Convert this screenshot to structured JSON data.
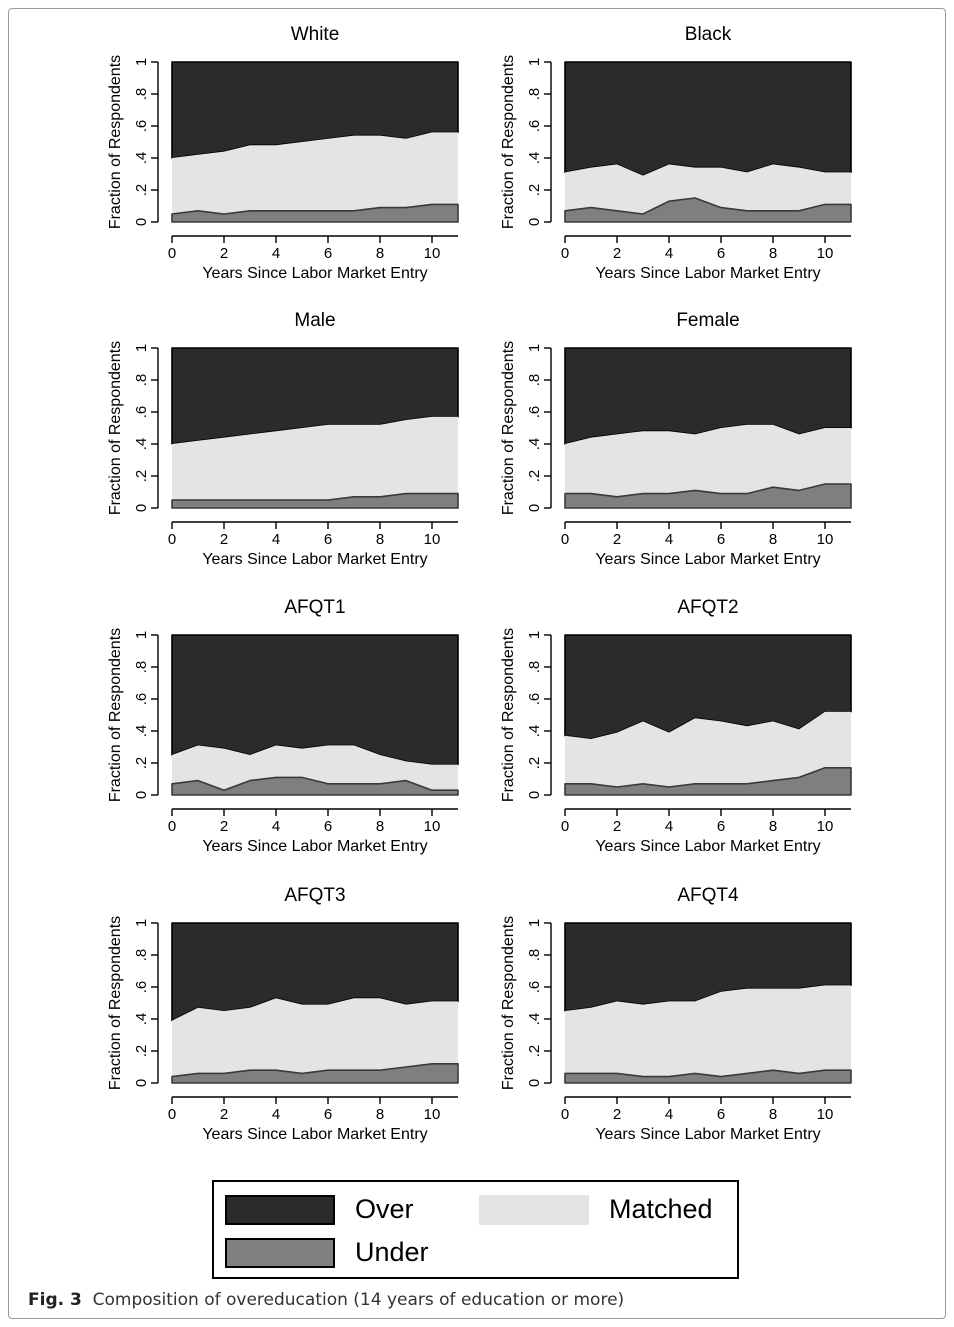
{
  "colors": {
    "over": "#2b2b2b",
    "matched": "#e4e4e4",
    "under": "#7f7f7f",
    "axis": "#000000",
    "grid": "#e9eef3"
  },
  "chart_data": [
    {
      "type": "area",
      "title": "White",
      "xlabel": "Years Since Labor Market Entry",
      "ylabel": "Fraction of Respondents",
      "xlim": [
        0,
        11
      ],
      "ylim": [
        0,
        1
      ],
      "x": [
        0,
        1,
        2,
        3,
        4,
        5,
        6,
        7,
        8,
        9,
        10,
        11
      ],
      "series": [
        {
          "name": "Under",
          "cumulative": [
            0.05,
            0.07,
            0.05,
            0.07,
            0.07,
            0.07,
            0.07,
            0.07,
            0.09,
            0.09,
            0.11,
            0.11
          ]
        },
        {
          "name": "Matched",
          "cumulative": [
            0.4,
            0.42,
            0.44,
            0.48,
            0.48,
            0.5,
            0.52,
            0.54,
            0.54,
            0.52,
            0.56,
            0.56
          ]
        },
        {
          "name": "Over",
          "cumulative": [
            1,
            1,
            1,
            1,
            1,
            1,
            1,
            1,
            1,
            1,
            1,
            1
          ]
        }
      ],
      "xticks": [
        "0",
        "2",
        "4",
        "6",
        "8",
        "10"
      ],
      "yticks": [
        "0",
        ".2",
        ".4",
        ".6",
        ".8",
        "1"
      ]
    },
    {
      "type": "area",
      "title": "Black",
      "xlabel": "Years Since Labor Market Entry",
      "ylabel": "Fraction of Respondents",
      "xlim": [
        0,
        11
      ],
      "ylim": [
        0,
        1
      ],
      "x": [
        0,
        1,
        2,
        3,
        4,
        5,
        6,
        7,
        8,
        9,
        10,
        11
      ],
      "series": [
        {
          "name": "Under",
          "cumulative": [
            0.07,
            0.09,
            0.07,
            0.05,
            0.13,
            0.15,
            0.09,
            0.07,
            0.07,
            0.07,
            0.11,
            0.11
          ]
        },
        {
          "name": "Matched",
          "cumulative": [
            0.31,
            0.34,
            0.36,
            0.29,
            0.36,
            0.34,
            0.34,
            0.31,
            0.36,
            0.34,
            0.31,
            0.31
          ]
        },
        {
          "name": "Over",
          "cumulative": [
            1,
            1,
            1,
            1,
            1,
            1,
            1,
            1,
            1,
            1,
            1,
            1
          ]
        }
      ],
      "xticks": [
        "0",
        "2",
        "4",
        "6",
        "8",
        "10"
      ],
      "yticks": [
        "0",
        ".2",
        ".4",
        ".6",
        ".8",
        "1"
      ]
    },
    {
      "type": "area",
      "title": "Male",
      "xlabel": "Years Since Labor Market Entry",
      "ylabel": "Fraction of Respondents",
      "xlim": [
        0,
        11
      ],
      "ylim": [
        0,
        1
      ],
      "x": [
        0,
        1,
        2,
        3,
        4,
        5,
        6,
        7,
        8,
        9,
        10,
        11
      ],
      "series": [
        {
          "name": "Under",
          "cumulative": [
            0.05,
            0.05,
            0.05,
            0.05,
            0.05,
            0.05,
            0.05,
            0.07,
            0.07,
            0.09,
            0.09,
            0.09
          ]
        },
        {
          "name": "Matched",
          "cumulative": [
            0.4,
            0.42,
            0.44,
            0.46,
            0.48,
            0.5,
            0.52,
            0.52,
            0.52,
            0.55,
            0.57,
            0.57
          ]
        },
        {
          "name": "Over",
          "cumulative": [
            1,
            1,
            1,
            1,
            1,
            1,
            1,
            1,
            1,
            1,
            1,
            1
          ]
        }
      ],
      "xticks": [
        "0",
        "2",
        "4",
        "6",
        "8",
        "10"
      ],
      "yticks": [
        "0",
        ".2",
        ".4",
        ".6",
        ".8",
        "1"
      ]
    },
    {
      "type": "area",
      "title": "Female",
      "xlabel": "Years Since Labor Market Entry",
      "ylabel": "Fraction of Respondents",
      "xlim": [
        0,
        11
      ],
      "ylim": [
        0,
        1
      ],
      "x": [
        0,
        1,
        2,
        3,
        4,
        5,
        6,
        7,
        8,
        9,
        10,
        11
      ],
      "series": [
        {
          "name": "Under",
          "cumulative": [
            0.09,
            0.09,
            0.07,
            0.09,
            0.09,
            0.11,
            0.09,
            0.09,
            0.13,
            0.11,
            0.15,
            0.15
          ]
        },
        {
          "name": "Matched",
          "cumulative": [
            0.4,
            0.44,
            0.46,
            0.48,
            0.48,
            0.46,
            0.5,
            0.52,
            0.52,
            0.46,
            0.5,
            0.5
          ]
        },
        {
          "name": "Over",
          "cumulative": [
            1,
            1,
            1,
            1,
            1,
            1,
            1,
            1,
            1,
            1,
            1,
            1
          ]
        }
      ],
      "xticks": [
        "0",
        "2",
        "4",
        "6",
        "8",
        "10"
      ],
      "yticks": [
        "0",
        ".2",
        ".4",
        ".6",
        ".8",
        "1"
      ]
    },
    {
      "type": "area",
      "title": "AFQT1",
      "xlabel": "Years Since Labor Market Entry",
      "ylabel": "Fraction of Respondents",
      "xlim": [
        0,
        11
      ],
      "ylim": [
        0,
        1
      ],
      "x": [
        0,
        1,
        2,
        3,
        4,
        5,
        6,
        7,
        8,
        9,
        10,
        11
      ],
      "series": [
        {
          "name": "Under",
          "cumulative": [
            0.07,
            0.09,
            0.03,
            0.09,
            0.11,
            0.11,
            0.07,
            0.07,
            0.07,
            0.09,
            0.03,
            0.03
          ]
        },
        {
          "name": "Matched",
          "cumulative": [
            0.25,
            0.31,
            0.29,
            0.25,
            0.31,
            0.29,
            0.31,
            0.31,
            0.25,
            0.21,
            0.19,
            0.19
          ]
        },
        {
          "name": "Over",
          "cumulative": [
            1,
            1,
            1,
            1,
            1,
            1,
            1,
            1,
            1,
            1,
            1,
            1
          ]
        }
      ],
      "xticks": [
        "0",
        "2",
        "4",
        "6",
        "8",
        "10"
      ],
      "yticks": [
        "0",
        ".2",
        ".4",
        ".6",
        ".8",
        "1"
      ]
    },
    {
      "type": "area",
      "title": "AFQT2",
      "xlabel": "Years Since Labor Market Entry",
      "ylabel": "Fraction of Respondents",
      "xlim": [
        0,
        11
      ],
      "ylim": [
        0,
        1
      ],
      "x": [
        0,
        1,
        2,
        3,
        4,
        5,
        6,
        7,
        8,
        9,
        10,
        11
      ],
      "series": [
        {
          "name": "Under",
          "cumulative": [
            0.07,
            0.07,
            0.05,
            0.07,
            0.05,
            0.07,
            0.07,
            0.07,
            0.09,
            0.11,
            0.17,
            0.17
          ]
        },
        {
          "name": "Matched",
          "cumulative": [
            0.37,
            0.35,
            0.39,
            0.46,
            0.39,
            0.48,
            0.46,
            0.43,
            0.46,
            0.41,
            0.52,
            0.52
          ]
        },
        {
          "name": "Over",
          "cumulative": [
            1,
            1,
            1,
            1,
            1,
            1,
            1,
            1,
            1,
            1,
            1,
            1
          ]
        }
      ],
      "xticks": [
        "0",
        "2",
        "4",
        "6",
        "8",
        "10"
      ],
      "yticks": [
        "0",
        ".2",
        ".4",
        ".6",
        ".8",
        "1"
      ]
    },
    {
      "type": "area",
      "title": "AFQT3",
      "xlabel": "Years Since Labor Market Entry",
      "ylabel": "Fraction of Respondents",
      "xlim": [
        0,
        11
      ],
      "ylim": [
        0,
        1
      ],
      "x": [
        0,
        1,
        2,
        3,
        4,
        5,
        6,
        7,
        8,
        9,
        10,
        11
      ],
      "series": [
        {
          "name": "Under",
          "cumulative": [
            0.04,
            0.06,
            0.06,
            0.08,
            0.08,
            0.06,
            0.08,
            0.08,
            0.08,
            0.1,
            0.12,
            0.12
          ]
        },
        {
          "name": "Matched",
          "cumulative": [
            0.39,
            0.47,
            0.45,
            0.47,
            0.53,
            0.49,
            0.49,
            0.53,
            0.53,
            0.49,
            0.51,
            0.51
          ]
        },
        {
          "name": "Over",
          "cumulative": [
            1,
            1,
            1,
            1,
            1,
            1,
            1,
            1,
            1,
            1,
            1,
            1
          ]
        }
      ],
      "xticks": [
        "0",
        "2",
        "4",
        "6",
        "8",
        "10"
      ],
      "yticks": [
        "0",
        ".2",
        ".4",
        ".6",
        ".8",
        "1"
      ]
    },
    {
      "type": "area",
      "title": "AFQT4",
      "xlabel": "Years Since Labor Market Entry",
      "ylabel": "Fraction of Respondents",
      "xlim": [
        0,
        11
      ],
      "ylim": [
        0,
        1
      ],
      "x": [
        0,
        1,
        2,
        3,
        4,
        5,
        6,
        7,
        8,
        9,
        10,
        11
      ],
      "series": [
        {
          "name": "Under",
          "cumulative": [
            0.06,
            0.06,
            0.06,
            0.04,
            0.04,
            0.06,
            0.04,
            0.06,
            0.08,
            0.06,
            0.08,
            0.08
          ]
        },
        {
          "name": "Matched",
          "cumulative": [
            0.45,
            0.47,
            0.51,
            0.49,
            0.51,
            0.51,
            0.57,
            0.59,
            0.59,
            0.59,
            0.61,
            0.61
          ]
        },
        {
          "name": "Over",
          "cumulative": [
            1,
            1,
            1,
            1,
            1,
            1,
            1,
            1,
            1,
            1,
            1,
            1
          ]
        }
      ],
      "xticks": [
        "0",
        "2",
        "4",
        "6",
        "8",
        "10"
      ],
      "yticks": [
        "0",
        ".2",
        ".4",
        ".6",
        ".8",
        "1"
      ]
    }
  ],
  "legend": {
    "over_label": "Over",
    "matched_label": "Matched",
    "under_label": "Under"
  },
  "caption": {
    "label": "Fig. 3",
    "text": "Composition of overeducation (14 years of education or more)"
  }
}
